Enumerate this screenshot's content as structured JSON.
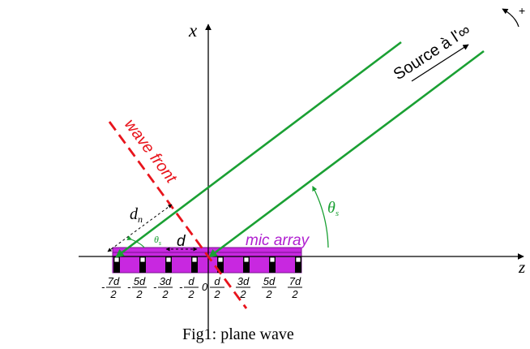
{
  "figure": {
    "caption": "Fig1: plane wave",
    "axes": {
      "x_label": "x",
      "z_label": "z"
    },
    "rotation_sign": "+",
    "source_label": "Source à l'∞",
    "wave_front_label": "wave front",
    "angle_label": "θs",
    "angle_main": "θ",
    "angle_sub": "s",
    "distance_label": "dn",
    "distance_main": "d",
    "distance_sub": "n",
    "spacing_label": "d",
    "mic_array_label": "mic array",
    "zero_label": "0",
    "neg_sign": "-",
    "positions": [
      {
        "num": "7d",
        "den": "2",
        "neg": true
      },
      {
        "num": "5d",
        "den": "2",
        "neg": true
      },
      {
        "num": "3d",
        "den": "2",
        "neg": true
      },
      {
        "num": "d",
        "den": "2",
        "neg": true
      },
      {
        "num": "d",
        "den": "2",
        "neg": false
      },
      {
        "num": "3d",
        "den": "2",
        "neg": false
      },
      {
        "num": "5d",
        "den": "2",
        "neg": false
      },
      {
        "num": "7d",
        "den": "2",
        "neg": false
      }
    ],
    "colors": {
      "axes": "#000000",
      "rays": "#1aa033",
      "wave_front": "#e8141c",
      "array_fill": "#c828e0",
      "array_stroke": "#7a1090",
      "mic_label": "#b020d0",
      "angle": "#1aa033"
    }
  }
}
